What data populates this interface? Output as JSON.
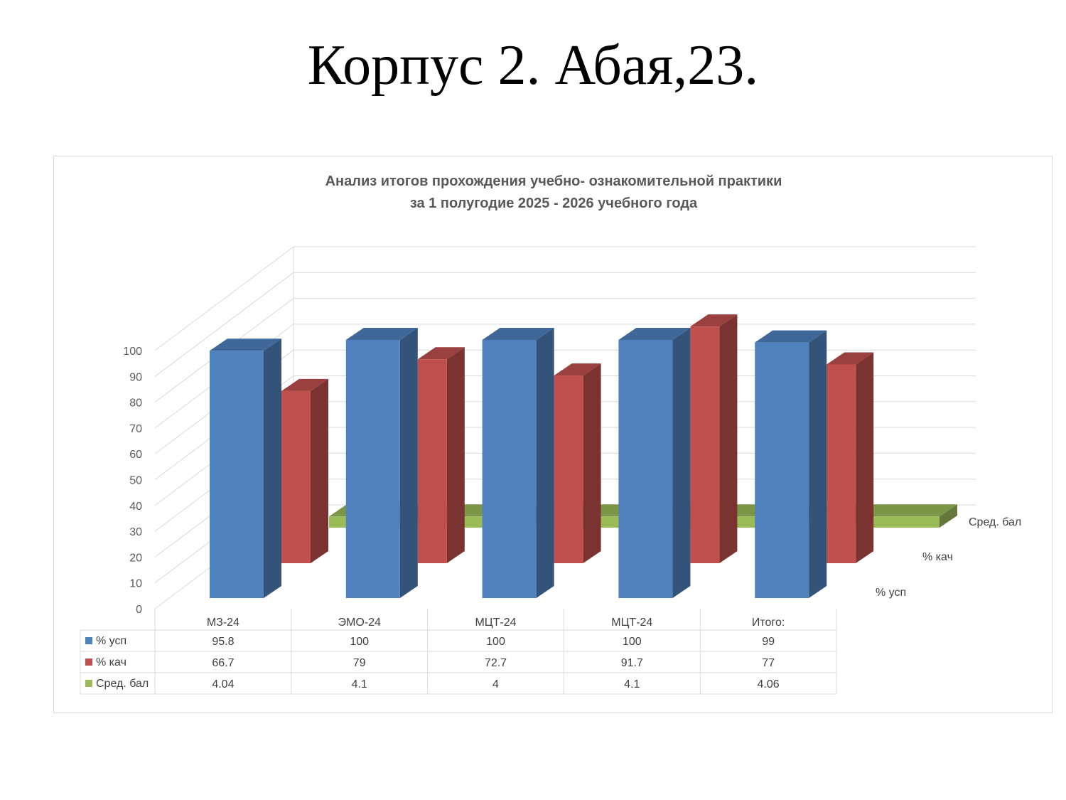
{
  "slide": {
    "title": "Корпус 2. Абая,23."
  },
  "chart_data": {
    "type": "bar",
    "title_line1": "Анализ итогов прохождения учебно- ознакомительной практики",
    "title_line2": "за 1 полугодие 2025 - 2026 учебного года",
    "categories": [
      "МЗ-24",
      "ЭМО-24",
      "МЦТ-24",
      "МЦТ-24",
      "Итого:"
    ],
    "series": [
      {
        "name": "% усп",
        "values": [
          95.8,
          100,
          100,
          100,
          99
        ],
        "labels": [
          "95.8",
          "100",
          "100",
          "100",
          "99"
        ],
        "color": "#4f81bd"
      },
      {
        "name": "% кач",
        "values": [
          66.7,
          79,
          72.7,
          91.7,
          77
        ],
        "labels": [
          "66.7",
          "79",
          "72.7",
          "91.7",
          "77"
        ],
        "color": "#c0504d"
      },
      {
        "name": "Сред. бал",
        "values": [
          4.04,
          4.1,
          4,
          4.1,
          4.06
        ],
        "labels": [
          "4.04",
          "4.1",
          "4",
          "4.1",
          "4.06"
        ],
        "color": "#9bbb59"
      }
    ],
    "y_ticks": [
      "0",
      "10",
      "20",
      "30",
      "40",
      "50",
      "60",
      "70",
      "80",
      "90",
      "100"
    ],
    "ylim": [
      0,
      100
    ],
    "grid": true,
    "style": "3d-clustered-columns-with-data-table"
  }
}
